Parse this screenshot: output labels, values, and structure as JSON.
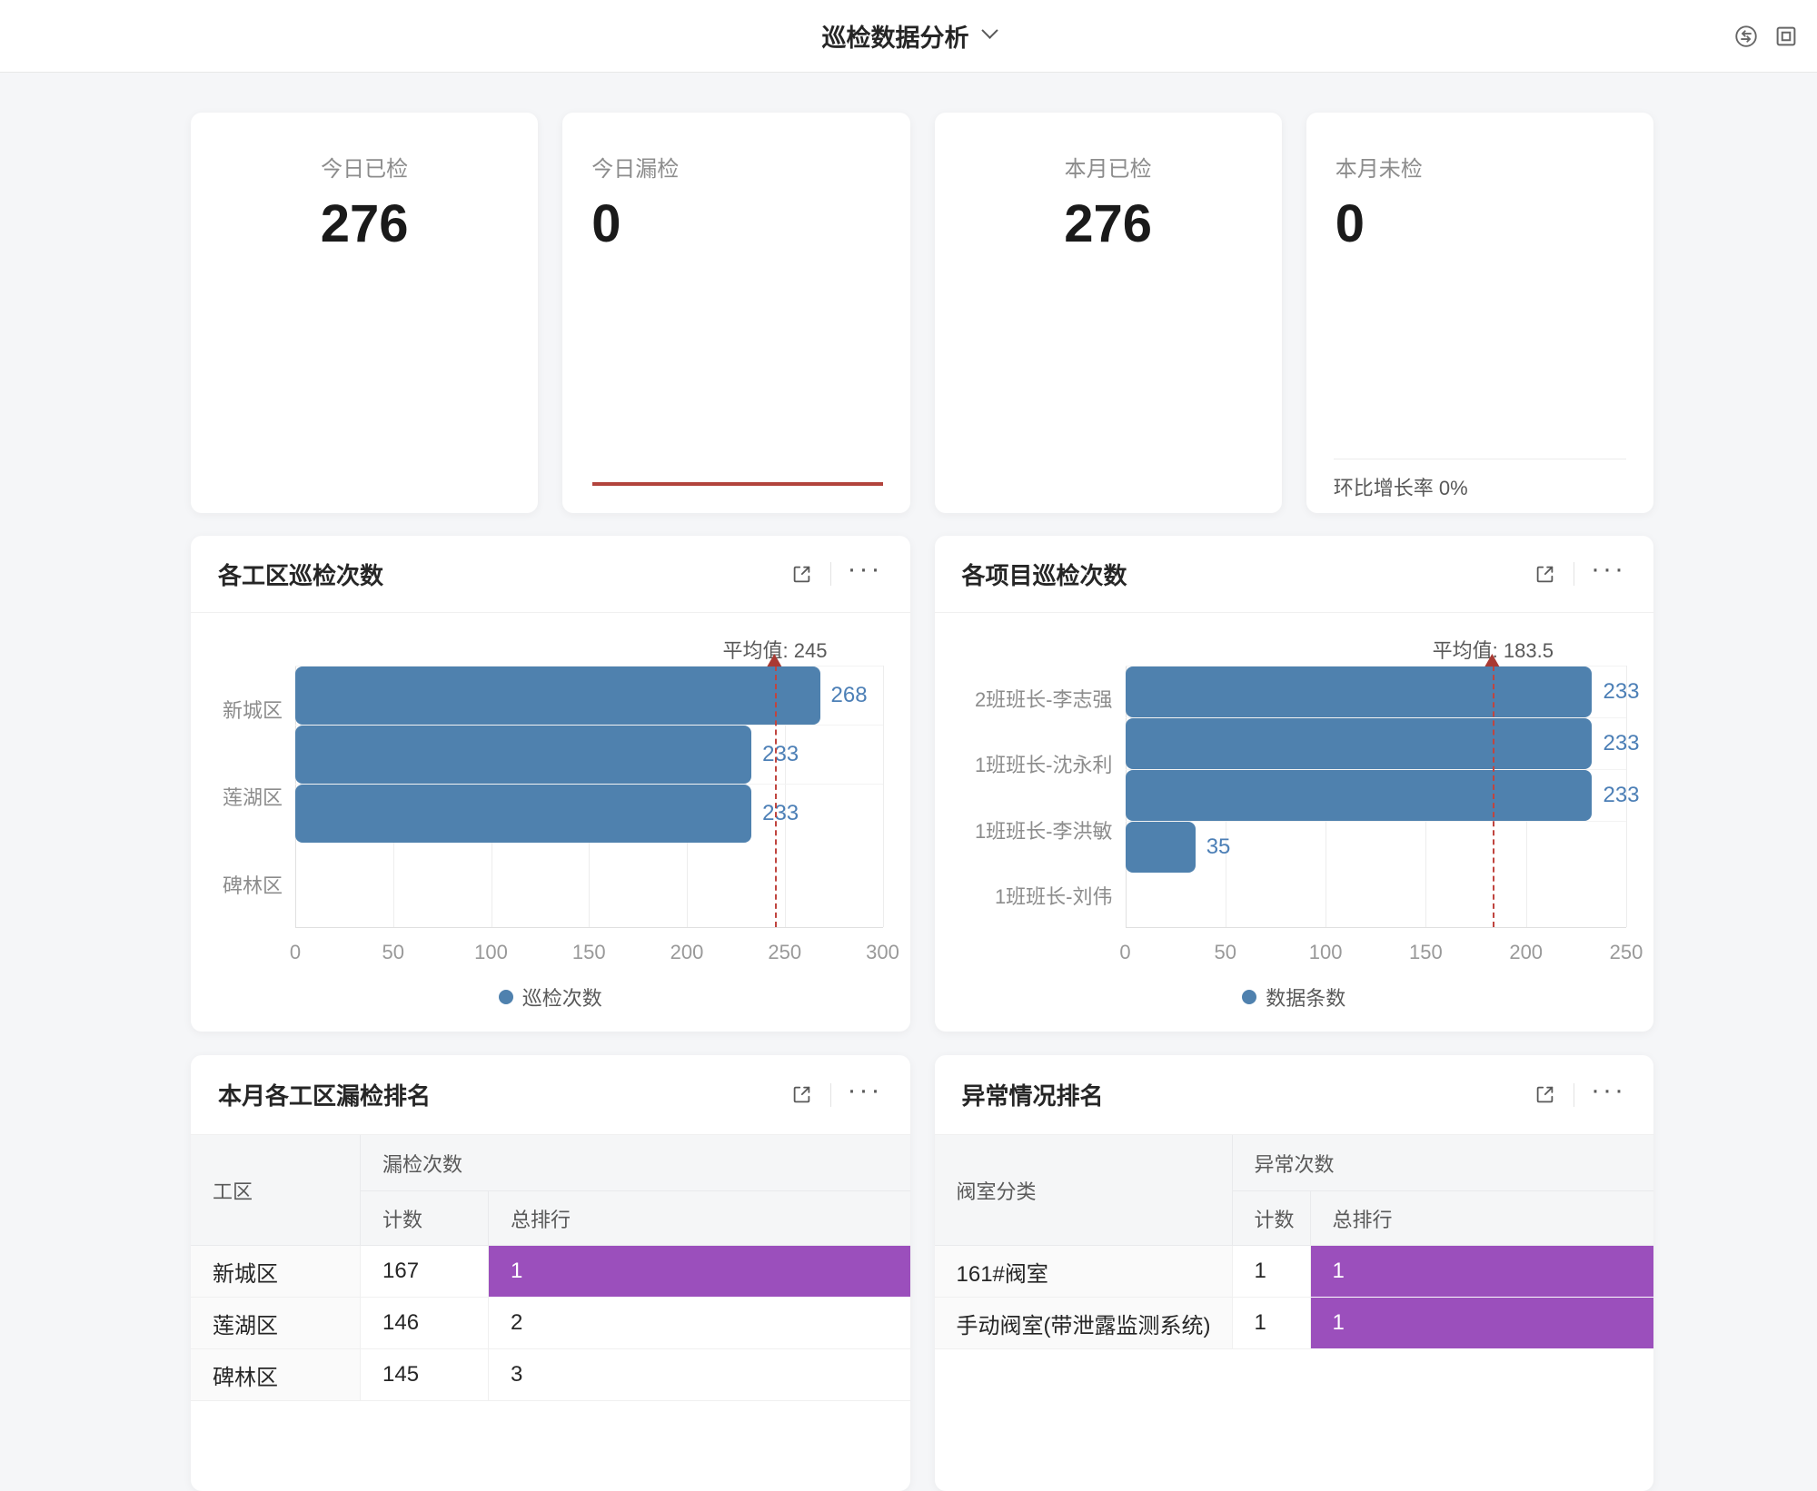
{
  "header": {
    "title": "巡检数据分析",
    "icons": {
      "right_1": "switch-icon",
      "right_2": "window-icon"
    }
  },
  "stat_cards": [
    {
      "label": "今日已检",
      "value": "276"
    },
    {
      "label": "今日漏检",
      "value": "0"
    },
    {
      "label": "本月已检",
      "value": "276"
    },
    {
      "label": "本月未检",
      "value": "0",
      "footer": "环比增长率 0%"
    }
  ],
  "chart_data": [
    {
      "type": "bar",
      "orientation": "horizontal",
      "title": "各工区巡检次数",
      "categories": [
        "新城区",
        "莲湖区",
        "碑林区"
      ],
      "values": [
        268,
        233,
        233
      ],
      "average": 245,
      "average_label": "平均值: 245",
      "xlim": [
        0,
        300
      ],
      "xticks": [
        0,
        50,
        100,
        150,
        200,
        250,
        300
      ],
      "legend": [
        "巡检次数"
      ],
      "grid": true,
      "legend_position": "bottom"
    },
    {
      "type": "bar",
      "orientation": "horizontal",
      "title": "各项目巡检次数",
      "categories": [
        "2班班长-李志强",
        "1班班长-沈永利",
        "1班班长-李洪敏",
        "1班班长-刘伟"
      ],
      "values": [
        233,
        233,
        233,
        35
      ],
      "average": 183.5,
      "average_label": "平均值: 183.5",
      "xlim": [
        0,
        250
      ],
      "xticks": [
        0,
        50,
        100,
        150,
        200,
        250
      ],
      "legend": [
        "数据条数"
      ],
      "grid": true,
      "legend_position": "bottom"
    }
  ],
  "tables": [
    {
      "title": "本月各工区漏检排名",
      "col1_header": "工区",
      "group_header": "漏检次数",
      "sub_headers": [
        "计数",
        "总排行"
      ],
      "rows": [
        {
          "name": "新城区",
          "count": "167",
          "rank": "1",
          "rank_highlight": true
        },
        {
          "name": "莲湖区",
          "count": "146",
          "rank": "2",
          "rank_highlight": false
        },
        {
          "name": "碑林区",
          "count": "145",
          "rank": "3",
          "rank_highlight": false
        }
      ]
    },
    {
      "title": "异常情况排名",
      "col1_header": "阀室分类",
      "group_header": "异常次数",
      "sub_headers": [
        "计数",
        "总排行"
      ],
      "rows": [
        {
          "name": "161#阀室",
          "count": "1",
          "rank": "1",
          "rank_highlight": true
        },
        {
          "name": "手动阀室(带泄露监测系统)",
          "count": "1",
          "rank": "1",
          "rank_highlight": true
        }
      ]
    }
  ],
  "colors": {
    "bar_blue": "#4f81ae",
    "value_blue": "#4c7fb6",
    "average_line_red": "#c0453f",
    "average_arrow_red": "#a93a33",
    "highlight_purple": "#9b4fbc",
    "sparkline_red": "#b2433c",
    "icon_gray": "#595959"
  }
}
